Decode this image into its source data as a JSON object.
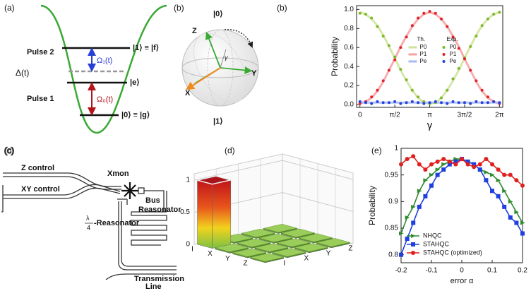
{
  "panels": {
    "a": {
      "label": "(a)",
      "pulse2": "Pulse 2",
      "pulse1": "Pulse 1",
      "delta": "Δ(t)",
      "omega1": "Ω₁(t)",
      "omega0": "Ω₀(t)",
      "level_f": "|1⟩ ≡ |f⟩",
      "level_e": "|e⟩",
      "level_g": "|0⟩ ≡ |g⟩"
    },
    "b": {
      "label": "(b)",
      "north": "|0⟩",
      "south": "|1⟩",
      "z": "Z",
      "x": "X",
      "y": "Y",
      "angle": "γ"
    },
    "c": {
      "label": "(c)",
      "z_control": "Z control",
      "xy_control": "XY control",
      "xmon": "Xmon",
      "bus": "Bus",
      "bus_resonator": "Reasonator",
      "quarter_num": "λ",
      "quarter_den": "4",
      "quarter_resonator": "-Reasonator",
      "transmission": "Transmission",
      "line": "Line"
    }
  },
  "chart_data": [
    {
      "type": "line",
      "panel": "(b)",
      "x": [
        0,
        0.2618,
        0.5236,
        0.7854,
        1.0472,
        1.309,
        1.5708,
        1.8326,
        2.0944,
        2.3562,
        2.618,
        2.8798,
        3.1416,
        3.4034,
        3.6652,
        3.927,
        4.1888,
        4.4506,
        4.7124,
        4.9742,
        5.236,
        5.4978,
        5.7596,
        6.0214,
        6.2832
      ],
      "xlim": [
        -0.15,
        6.43
      ],
      "xticks": [
        0,
        {
          "value": 1.5708,
          "label": "π/2"
        },
        {
          "value": 3.1416,
          "label": "π"
        },
        {
          "value": 4.7124,
          "label": "3π/2"
        },
        {
          "value": 6.2832,
          "label": "2π"
        }
      ],
      "ylim": [
        -0.03,
        1.04
      ],
      "yticks": [
        {
          "value": 0,
          "label": "0.0"
        },
        0.2,
        0.4,
        0.6,
        0.8,
        {
          "value": 1,
          "label": "1.0"
        }
      ],
      "xlabel": "γ",
      "ylabel": "Probability",
      "legend": "center",
      "legend_titles": [
        "Th.",
        "Exp."
      ],
      "series": [
        {
          "name": "P0",
          "style": "line",
          "color": "#cfe39a",
          "values": [
            0.97,
            0.95,
            0.9,
            0.83,
            0.73,
            0.61,
            0.49,
            0.36,
            0.25,
            0.15,
            0.07,
            0.02,
            0.01,
            0.02,
            0.07,
            0.15,
            0.25,
            0.36,
            0.49,
            0.61,
            0.73,
            0.83,
            0.9,
            0.95,
            0.97
          ]
        },
        {
          "name": "P1",
          "style": "line",
          "color": "#f4a0a0",
          "values": [
            0.01,
            0.03,
            0.07,
            0.14,
            0.24,
            0.36,
            0.48,
            0.61,
            0.72,
            0.82,
            0.9,
            0.95,
            0.97,
            0.95,
            0.9,
            0.82,
            0.72,
            0.61,
            0.48,
            0.36,
            0.24,
            0.14,
            0.07,
            0.03,
            0.01
          ]
        },
        {
          "name": "Pe",
          "style": "line",
          "color": "#a9b9f2",
          "values": [
            0.02,
            0.02,
            0.02,
            0.02,
            0.02,
            0.02,
            0.02,
            0.02,
            0.02,
            0.02,
            0.02,
            0.02,
            0.02,
            0.02,
            0.02,
            0.02,
            0.02,
            0.02,
            0.02,
            0.02,
            0.02,
            0.02,
            0.02,
            0.02,
            0.02
          ]
        },
        {
          "name": "P0",
          "style": "dots",
          "color": "#7db92a",
          "values": [
            0.96,
            0.95,
            0.91,
            0.82,
            0.72,
            0.62,
            0.5,
            0.37,
            0.26,
            0.15,
            0.08,
            0.03,
            0.01,
            0.02,
            0.07,
            0.15,
            0.27,
            0.38,
            0.49,
            0.61,
            0.72,
            0.83,
            0.9,
            0.95,
            0.97
          ]
        },
        {
          "name": "P1",
          "style": "dots",
          "color": "#e3212b",
          "values": [
            0.01,
            0.03,
            0.08,
            0.15,
            0.25,
            0.36,
            0.47,
            0.6,
            0.71,
            0.83,
            0.91,
            0.96,
            0.98,
            0.96,
            0.9,
            0.82,
            0.71,
            0.59,
            0.48,
            0.36,
            0.25,
            0.15,
            0.08,
            0.03,
            0.01
          ]
        },
        {
          "name": "Pe",
          "style": "dots",
          "color": "#2443e0",
          "values": [
            0.03,
            0.02,
            0.01,
            0.03,
            0.02,
            0.02,
            0.03,
            0.01,
            0.02,
            0.03,
            0.02,
            0.01,
            0.02,
            0.03,
            0.02,
            0.01,
            0.03,
            0.02,
            0.02,
            0.01,
            0.03,
            0.02,
            0.02,
            0.03,
            0.02
          ]
        }
      ]
    },
    {
      "type": "bar3d",
      "panel": "(d)",
      "row_labels": [
        "I",
        "X",
        "Y",
        "Z"
      ],
      "col_labels": [
        "I",
        "X",
        "Y",
        "Z"
      ],
      "values": [
        [
          1,
          0.02,
          0.02,
          0.02
        ],
        [
          0.02,
          0.02,
          0.02,
          0.02
        ],
        [
          0.02,
          0.02,
          0.02,
          0.02
        ],
        [
          0.02,
          0.02,
          0.02,
          0.02
        ]
      ],
      "zlim": [
        0,
        1.1
      ],
      "zticks": [
        0,
        0.5,
        1
      ]
    },
    {
      "type": "line",
      "panel": "(e)",
      "x": [
        -0.2,
        -0.18,
        -0.16,
        -0.14,
        -0.12,
        -0.1,
        -0.08,
        -0.06,
        -0.04,
        -0.02,
        0,
        0.02,
        0.04,
        0.06,
        0.08,
        0.1,
        0.12,
        0.14,
        0.16,
        0.18,
        0.2
      ],
      "xlim": [
        -0.2,
        0.2
      ],
      "xticks": [
        -0.2,
        -0.1,
        0,
        0.1,
        0.2
      ],
      "ylim": [
        0.785,
        1.0
      ],
      "yticks": [
        0.8,
        0.85,
        0.9,
        0.95,
        1
      ],
      "xlabel": "error α",
      "ylabel": "Probability",
      "legend": "lower left",
      "series": [
        {
          "name": "NHQC",
          "style": "linemarker",
          "marker": "triangle",
          "color": "#2e8b2e",
          "values": [
            0.84,
            0.87,
            0.89,
            0.92,
            0.94,
            0.95,
            0.96,
            0.97,
            0.975,
            0.98,
            0.98,
            0.975,
            0.97,
            0.96,
            0.955,
            0.95,
            0.94,
            0.92,
            0.9,
            0.88,
            0.86
          ]
        },
        {
          "name": "STAHQC",
          "style": "linemarker",
          "marker": "square",
          "color": "#1f3fe0",
          "values": [
            0.8,
            0.83,
            0.86,
            0.89,
            0.91,
            0.93,
            0.95,
            0.96,
            0.97,
            0.975,
            0.98,
            0.975,
            0.97,
            0.96,
            0.94,
            0.92,
            0.91,
            0.89,
            0.87,
            0.86,
            0.84
          ]
        },
        {
          "name": "STAHQC (optimized)",
          "style": "linemarker",
          "marker": "circle",
          "color": "#e0201f",
          "values": [
            0.97,
            0.98,
            0.985,
            0.97,
            0.96,
            0.97,
            0.975,
            0.98,
            0.975,
            0.97,
            0.98,
            0.97,
            0.965,
            0.97,
            0.98,
            0.97,
            0.96,
            0.95,
            0.95,
            0.94,
            0.93
          ]
        }
      ]
    }
  ]
}
